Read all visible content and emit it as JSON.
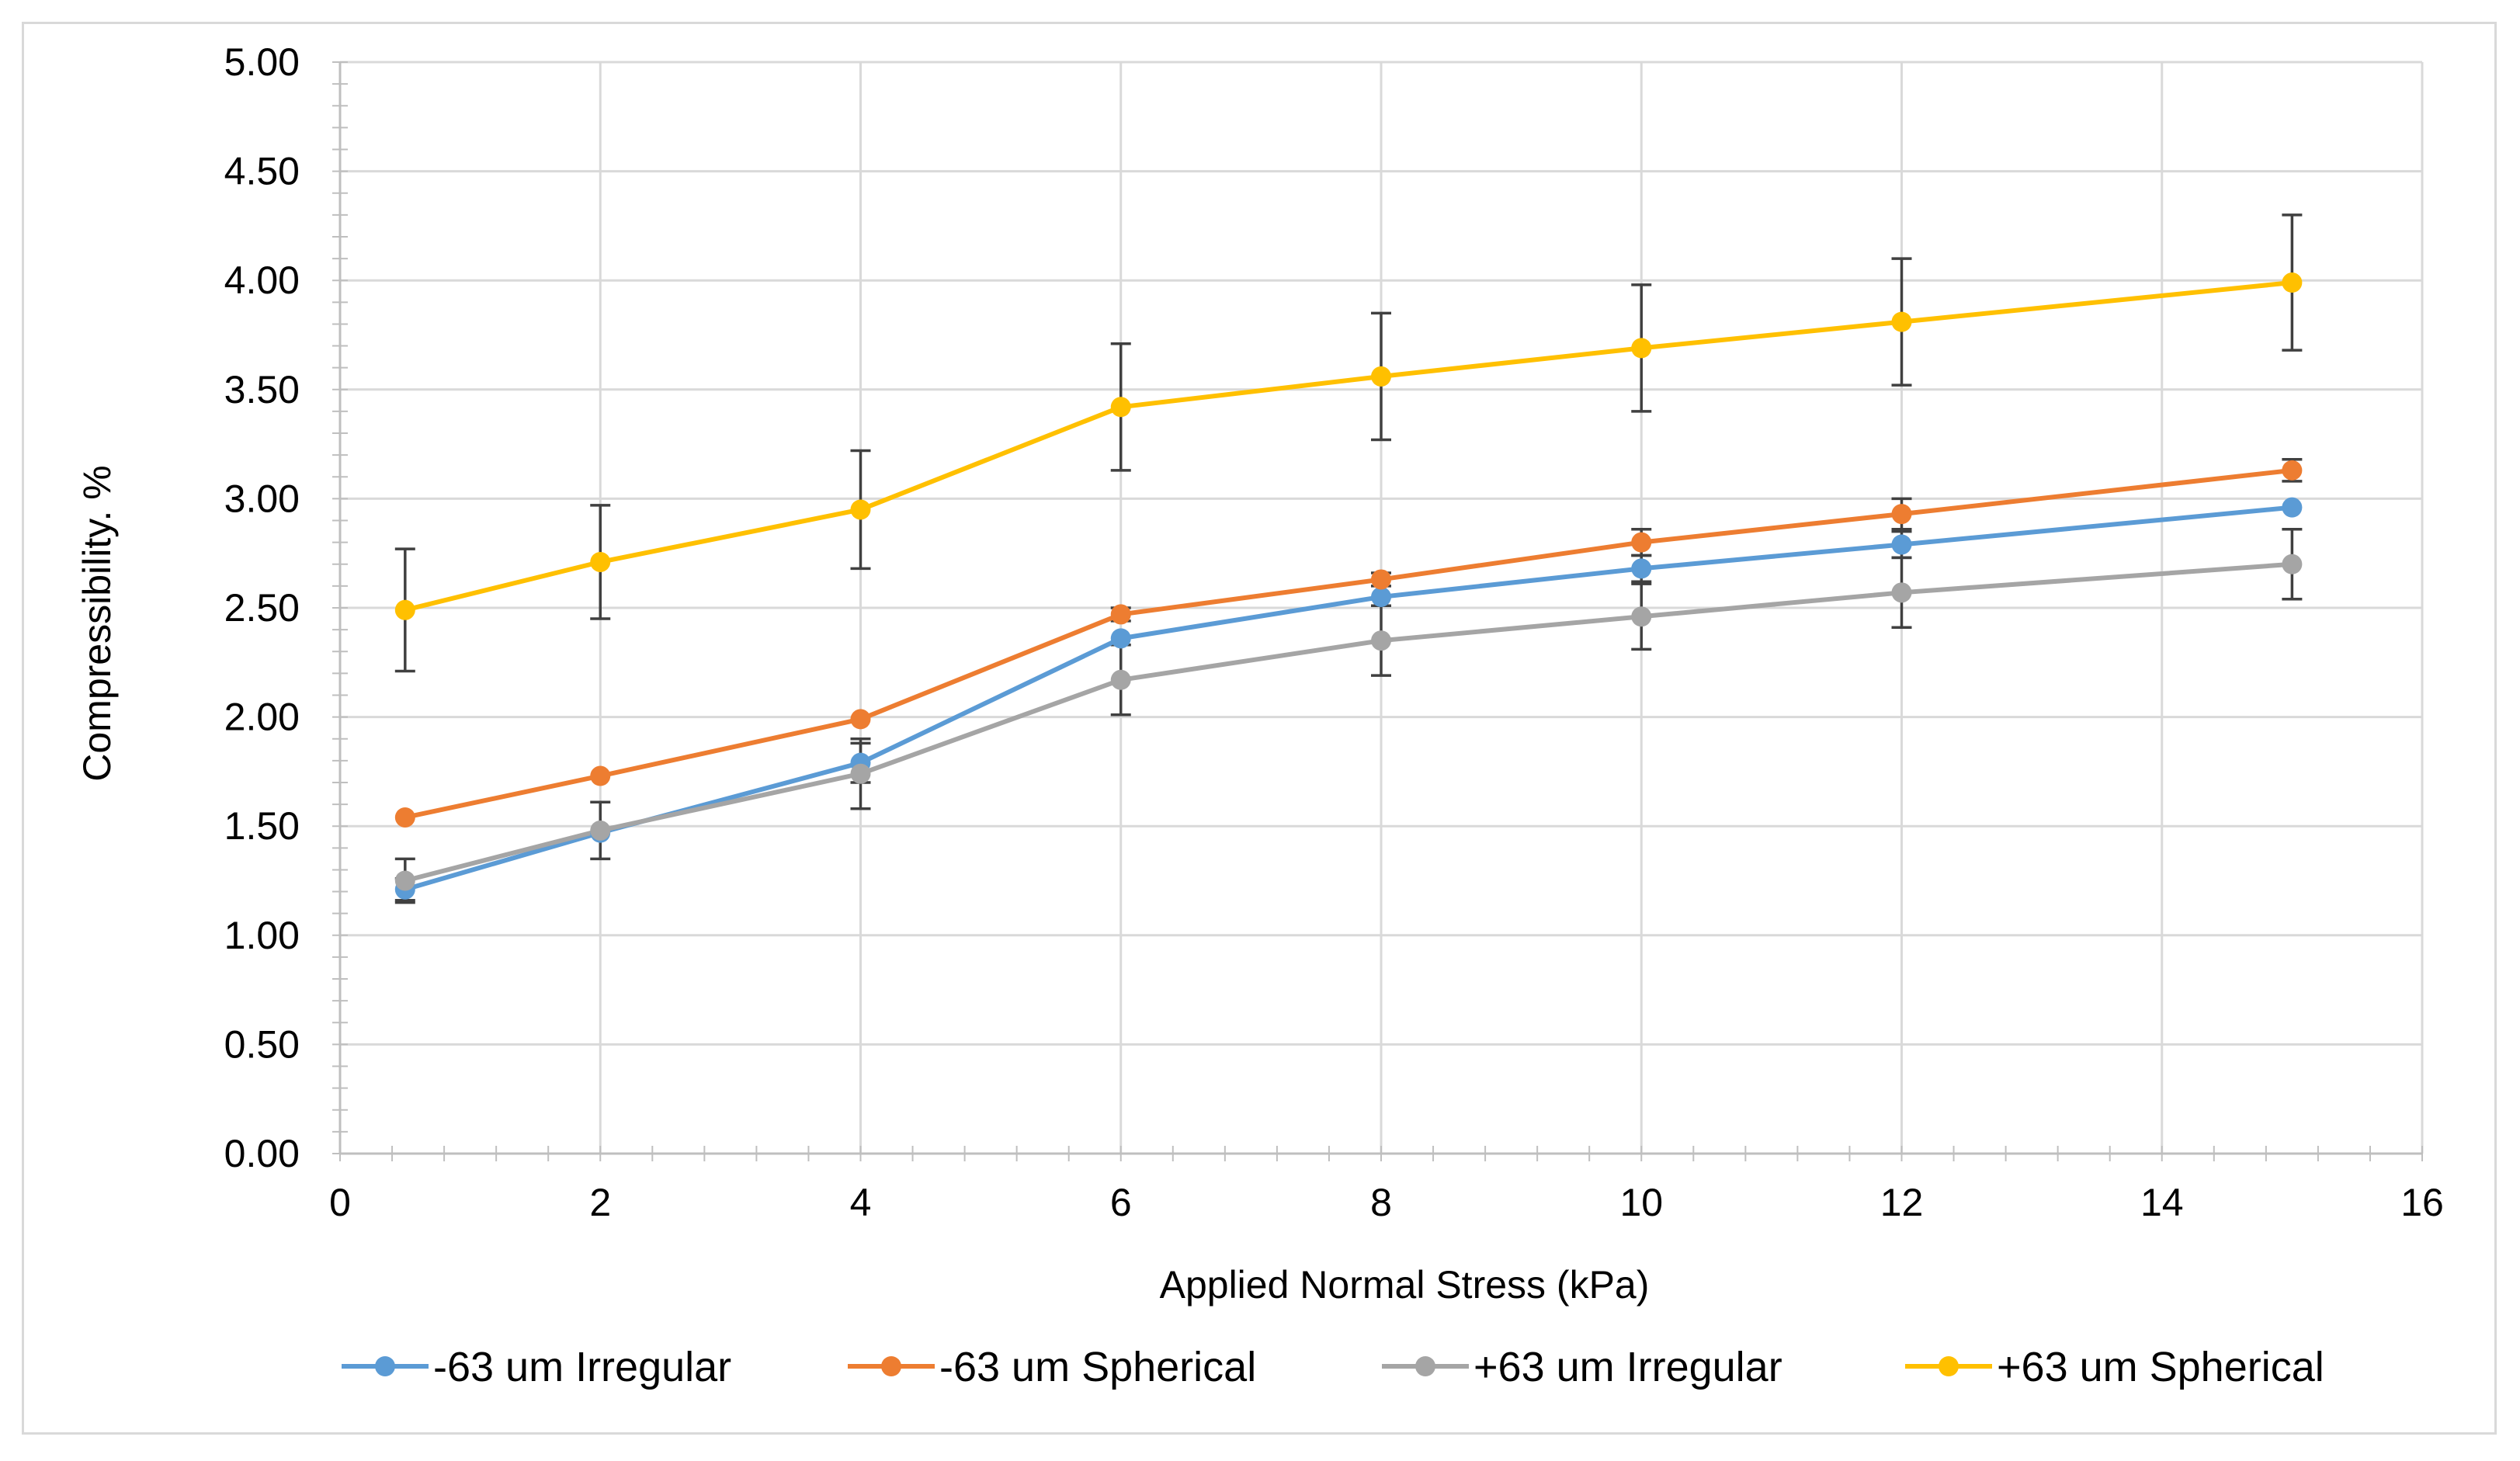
{
  "chart_data": {
    "type": "line",
    "title": "",
    "xlabel": "Applied Normal Stress (kPa)",
    "ylabel": "Compressibility. %",
    "xlim": [
      0,
      16
    ],
    "ylim": [
      0,
      5
    ],
    "xticks": [
      0,
      2,
      4,
      6,
      8,
      10,
      12,
      14,
      16
    ],
    "yticks": [
      0.0,
      0.5,
      1.0,
      1.5,
      2.0,
      2.5,
      3.0,
      3.5,
      4.0,
      4.5,
      5.0
    ],
    "x": [
      0.5,
      2,
      4,
      6,
      8,
      10,
      12,
      15
    ],
    "grid": true,
    "legend_position": "bottom",
    "series": [
      {
        "name": "-63 um Irregular",
        "color": "#5b9bd5",
        "values": [
          1.21,
          1.47,
          1.79,
          2.36,
          2.55,
          2.68,
          2.79,
          2.96
        ],
        "errors": [
          0.05,
          0,
          0.09,
          0,
          0,
          0.06,
          0.06,
          0
        ]
      },
      {
        "name": "-63 um Spherical",
        "color": "#ed7d31",
        "values": [
          1.54,
          1.73,
          1.99,
          2.47,
          2.63,
          2.8,
          2.93,
          3.13
        ],
        "errors": [
          0,
          0,
          0,
          0.03,
          0.03,
          0.06,
          0.07,
          0.05
        ]
      },
      {
        "name": "+63 um Irregular",
        "color": "#a5a5a5",
        "values": [
          1.25,
          1.48,
          1.74,
          2.17,
          2.35,
          2.46,
          2.57,
          2.7
        ],
        "errors": [
          0.1,
          0.13,
          0.16,
          0.16,
          0.16,
          0.15,
          0.16,
          0.16
        ]
      },
      {
        "name": "+63 um Spherical",
        "color": "#ffc000",
        "values": [
          2.49,
          2.71,
          2.95,
          3.42,
          3.56,
          3.69,
          3.81,
          3.99
        ],
        "errors": [
          0.28,
          0.26,
          0.27,
          0.29,
          0.29,
          0.29,
          0.29,
          0.31
        ]
      }
    ]
  }
}
